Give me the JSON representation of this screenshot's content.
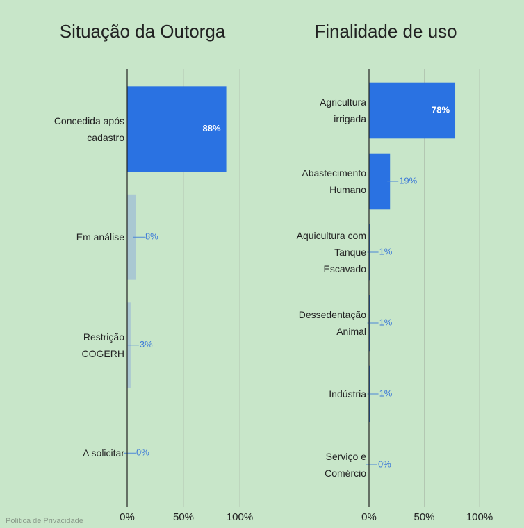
{
  "chart_data": [
    {
      "type": "bar",
      "title": "Situação da Outorga",
      "categories": [
        "Concedida após\ncadastro",
        "Em análise",
        "Restrição\nCOGERH",
        "A solicitar"
      ],
      "values": [
        88,
        8,
        3,
        0
      ],
      "value_labels": [
        "88%",
        "8%",
        "3%",
        "0%"
      ],
      "colors": [
        "#2a72e2",
        "#a9c8d2",
        "#a9c8d2",
        "#a9c8d2"
      ],
      "xlim": [
        0,
        100
      ],
      "xticks": [
        {
          "value": 0,
          "label": "0%"
        },
        {
          "value": 50,
          "label": "50%"
        },
        {
          "value": 100,
          "label": "100%"
        }
      ],
      "grid": true
    },
    {
      "type": "bar",
      "title": "Finalidade de uso",
      "categories": [
        "Agricultura\nirrigada",
        "Abastecimento\nHumano",
        "Aquicultura com\nTanque\nEscavado",
        "Dessedentação\nAnimal",
        "Indústria",
        "Serviço e\nComércio"
      ],
      "values": [
        78,
        19,
        1,
        1,
        1,
        0
      ],
      "value_labels": [
        "78%",
        "19%",
        "1%",
        "1%",
        "1%",
        "0%"
      ],
      "colors": [
        "#2a72e2",
        "#2a72e2",
        "#2a72e2",
        "#2a72e2",
        "#2a72e2",
        "#2a72e2"
      ],
      "xlim": [
        0,
        100
      ],
      "xticks": [
        {
          "value": 0,
          "label": "0%"
        },
        {
          "value": 50,
          "label": "50%"
        },
        {
          "value": 100,
          "label": "100%"
        }
      ],
      "grid": true
    }
  ],
  "footer": "Política de Privacidade"
}
